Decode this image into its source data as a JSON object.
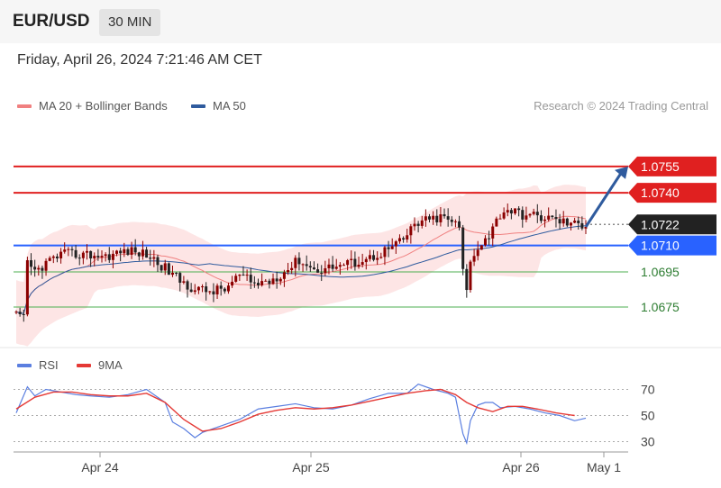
{
  "header": {
    "symbol": "EUR/USD",
    "timeframe": "30 MIN"
  },
  "datetime": "Friday, April 26, 2024 7:21:46 AM CET",
  "legend": {
    "ma20": "MA 20 + Bollinger Bands",
    "ma50": "MA 50",
    "credit": "Research © 2024 Trading Central"
  },
  "rsi_legend": {
    "rsi": "RSI",
    "ma9": "9MA"
  },
  "colors": {
    "ma20": "#f08080",
    "ma50": "#2f5b9e",
    "bollinger": "#fde0e0",
    "resistance": "#e02020",
    "support_major": "#2962ff",
    "support_minor": "#4caf50",
    "up_candle": "#8b0000",
    "down_candle": "#222222",
    "current": "#222222",
    "rsi": "#5b7fe0",
    "ma9": "#e53935",
    "arrow": "#2f5b9e"
  },
  "chart_data": [
    {
      "type": "candlestick",
      "title": "EUR/USD 30 MIN",
      "y_range": [
        1.0655,
        1.0778
      ],
      "x_labels": [
        "Apr 24",
        "Apr 25",
        "Apr 26",
        "May 1"
      ],
      "levels": [
        {
          "value": 1.0755,
          "label": "1.0755",
          "kind": "resistance"
        },
        {
          "value": 1.074,
          "label": "1.0740",
          "kind": "resistance"
        },
        {
          "value": 1.0722,
          "label": "1.0722",
          "kind": "current"
        },
        {
          "value": 1.071,
          "label": "1.0710",
          "kind": "support_major"
        },
        {
          "value": 1.0695,
          "label": "1.0695",
          "kind": "support_minor"
        },
        {
          "value": 1.0675,
          "label": "1.0675",
          "kind": "support_minor"
        }
      ],
      "series": [
        {
          "name": "MA 20",
          "style": "line"
        },
        {
          "name": "MA 50",
          "style": "line"
        }
      ],
      "close_path": [
        [
          0,
          1.067
        ],
        [
          2,
          1.0668
        ],
        [
          3,
          1.07
        ],
        [
          5,
          1.0695
        ],
        [
          8,
          1.07
        ],
        [
          12,
          1.0705
        ],
        [
          18,
          1.0705
        ],
        [
          24,
          1.0704
        ],
        [
          30,
          1.0707
        ],
        [
          35,
          1.0705
        ],
        [
          40,
          1.0697
        ],
        [
          44,
          1.069
        ],
        [
          48,
          1.0685
        ],
        [
          52,
          1.0684
        ],
        [
          56,
          1.0685
        ],
        [
          60,
          1.0693
        ],
        [
          64,
          1.0688
        ],
        [
          68,
          1.069
        ],
        [
          72,
          1.0695
        ],
        [
          76,
          1.0702
        ],
        [
          80,
          1.0696
        ],
        [
          85,
          1.0698
        ],
        [
          90,
          1.07
        ],
        [
          95,
          1.0703
        ],
        [
          100,
          1.0708
        ],
        [
          104,
          1.0713
        ],
        [
          107,
          1.0722
        ],
        [
          110,
          1.0724
        ],
        [
          114,
          1.0726
        ],
        [
          117,
          1.0724
        ],
        [
          119,
          1.072
        ],
        [
          120,
          1.0695
        ],
        [
          121,
          1.0685
        ],
        [
          122,
          1.07
        ],
        [
          124,
          1.071
        ],
        [
          127,
          1.0716
        ],
        [
          130,
          1.0728
        ],
        [
          132,
          1.0731
        ],
        [
          135,
          1.0728
        ],
        [
          138,
          1.0727
        ],
        [
          142,
          1.0726
        ],
        [
          146,
          1.0724
        ],
        [
          150,
          1.0722
        ],
        [
          153,
          1.0722
        ]
      ],
      "projection": {
        "to": 1.0755
      }
    },
    {
      "type": "line",
      "title": "RSI",
      "y_ticks": [
        70,
        50,
        30
      ],
      "y_range": [
        20,
        80
      ],
      "series": [
        {
          "name": "RSI",
          "x": [
            0,
            3,
            5,
            8,
            12,
            16,
            20,
            25,
            30,
            35,
            40,
            42,
            45,
            48,
            50,
            55,
            60,
            65,
            70,
            75,
            80,
            85,
            90,
            95,
            100,
            105,
            108,
            112,
            116,
            118,
            119,
            120,
            121,
            122,
            124,
            126,
            128,
            130,
            134,
            138,
            142,
            146,
            150,
            153
          ],
          "values": [
            52,
            72,
            65,
            70,
            68,
            66,
            65,
            64,
            66,
            70,
            60,
            45,
            40,
            33,
            37,
            42,
            47,
            55,
            57,
            59,
            56,
            55,
            58,
            63,
            67,
            67,
            74,
            70,
            67,
            64,
            50,
            36,
            29,
            46,
            58,
            60,
            60,
            56,
            57,
            55,
            52,
            50,
            46,
            48
          ]
        },
        {
          "name": "9MA",
          "x": [
            0,
            5,
            10,
            15,
            20,
            25,
            30,
            35,
            40,
            45,
            50,
            55,
            60,
            65,
            70,
            75,
            80,
            85,
            90,
            95,
            100,
            105,
            110,
            114,
            118,
            121,
            124,
            128,
            132,
            136,
            140,
            145,
            150
          ],
          "values": [
            55,
            64,
            68,
            68,
            66,
            65,
            65,
            67,
            60,
            47,
            38,
            40,
            45,
            51,
            54,
            56,
            55,
            56,
            58,
            61,
            64,
            67,
            69,
            70,
            66,
            60,
            56,
            53,
            57,
            57,
            55,
            52,
            50
          ]
        }
      ]
    }
  ]
}
